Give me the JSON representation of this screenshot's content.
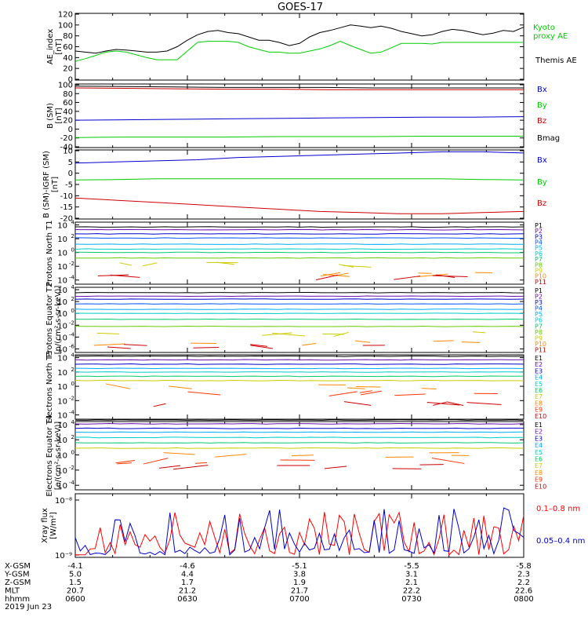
{
  "title": "GOES-17",
  "chart_data": [
    {
      "type": "line",
      "ylabel": "AE_index [nT]",
      "ylim": [
        0,
        120
      ],
      "yticks": [
        "0",
        "20",
        "40",
        "60",
        "80",
        "100",
        "120"
      ],
      "series": [
        {
          "name": "Kyoto proxy AE",
          "color": "#00cc00",
          "values": [
            33,
            38,
            44,
            50,
            52,
            50,
            45,
            40,
            36,
            36,
            36,
            52,
            68,
            70,
            70,
            70,
            68,
            60,
            55,
            50,
            50,
            48,
            48,
            52,
            56,
            62,
            70,
            62,
            55,
            48,
            50,
            58,
            66,
            66,
            66,
            65,
            68,
            68,
            68,
            68,
            68,
            68,
            68,
            68,
            68
          ]
        },
        {
          "name": "Themis AE",
          "color": "#000000",
          "values": [
            52,
            50,
            48,
            52,
            55,
            54,
            52,
            50,
            50,
            52,
            60,
            72,
            82,
            88,
            90,
            86,
            84,
            78,
            72,
            72,
            68,
            62,
            66,
            78,
            86,
            90,
            95,
            100,
            98,
            95,
            98,
            94,
            88,
            84,
            80,
            82,
            88,
            92,
            90,
            86,
            82,
            85,
            90,
            88,
            96
          ]
        }
      ]
    },
    {
      "type": "line",
      "ylabel": "B (SM) [nT]",
      "ylim": [
        -40,
        100
      ],
      "yticks": [
        "-40",
        "-20",
        "0",
        "20",
        "40",
        "60",
        "80",
        "100"
      ],
      "series": [
        {
          "name": "Bx",
          "color": "#0000cc",
          "values": [
            20,
            21,
            22,
            23,
            24,
            25,
            26,
            27,
            27,
            28
          ]
        },
        {
          "name": "By",
          "color": "#00cc00",
          "values": [
            -19,
            -18,
            -18,
            -18,
            -17,
            -17,
            -17,
            -16,
            -16,
            -16
          ]
        },
        {
          "name": "Bz",
          "color": "#cc0000",
          "values": [
            93,
            92,
            91,
            90,
            90,
            89,
            89,
            89,
            89,
            89
          ]
        },
        {
          "name": "Bmag",
          "color": "#000000",
          "values": [
            97,
            96,
            95,
            94,
            94,
            94,
            93,
            93,
            93,
            93
          ]
        }
      ]
    },
    {
      "type": "line",
      "ylabel": "B (SM)-IGRF (SM) [nT]",
      "ylim": [
        -20,
        10
      ],
      "yticks": [
        "-20",
        "-15",
        "-10",
        "-5",
        "0",
        "5",
        "10"
      ],
      "series": [
        {
          "name": "Bx",
          "color": "#0000cc",
          "values": [
            4.5,
            5,
            5.5,
            6,
            7,
            7.5,
            8,
            8.5,
            9,
            9.5,
            9.5,
            9
          ]
        },
        {
          "name": "By",
          "color": "#00cc00",
          "values": [
            -3,
            -2.8,
            -2.5,
            -2.5,
            -2.5,
            -2.5,
            -2.5,
            -2.5,
            -2.5,
            -2.5,
            -2.8,
            -3
          ]
        },
        {
          "name": "Bz",
          "color": "#cc0000",
          "values": [
            -11,
            -12,
            -13,
            -14,
            -15,
            -16,
            -17,
            -17.5,
            -18,
            -18,
            -17.5,
            -17
          ]
        }
      ]
    },
    {
      "type": "line",
      "ylabel": "Protons North T1",
      "yscale": "log",
      "yexp": [
        4,
        2,
        0,
        -2,
        -4
      ],
      "legend": [
        "P1",
        "P2",
        "P3",
        "P4",
        "P5",
        "P6",
        "P7",
        "P8",
        "P9",
        "P10",
        "P11"
      ],
      "legend_colors": [
        "#000000",
        "#6a0dad",
        "#0000cc",
        "#0055ff",
        "#00aaff",
        "#00cccc",
        "#00cc66",
        "#66cc00",
        "#cccc00",
        "#ff8800",
        "#cc0000"
      ],
      "levels": [
        3.7,
        3.3,
        2.7,
        2.1,
        1.2,
        0.5,
        0.0,
        -0.8,
        -1.8,
        -3.2,
        -3.6
      ]
    },
    {
      "type": "line",
      "ylabel": "Protons Equator T2 [p/(cm²-s-sr-keV)]",
      "yscale": "log",
      "yexp": [
        4,
        2,
        0,
        -2,
        -4,
        -6
      ],
      "legend": [
        "P1",
        "P2",
        "P3",
        "P4",
        "P5",
        "P6",
        "P7",
        "P8",
        "P9",
        "P10",
        "P11"
      ],
      "legend_colors": [
        "#000000",
        "#6a0dad",
        "#0000cc",
        "#0055ff",
        "#00aaff",
        "#00cccc",
        "#00cc66",
        "#66cc00",
        "#cccc00",
        "#ff8800",
        "#cc0000"
      ],
      "levels": [
        3.5,
        2.9,
        2.4,
        1.6,
        0.7,
        0.0,
        -1.0,
        -2.2,
        -3.5,
        -5.0,
        -5.6
      ]
    },
    {
      "type": "line",
      "ylabel": "Electrons North T3",
      "yscale": "log",
      "yexp": [
        4,
        2,
        0,
        -2,
        -4
      ],
      "legend": [
        "E1",
        "E2",
        "E3",
        "E4",
        "E5",
        "E6",
        "E7",
        "E8",
        "E9",
        "E10"
      ],
      "legend_colors": [
        "#000000",
        "#6a0dad",
        "#0000cc",
        "#00aaff",
        "#00cccc",
        "#00cc66",
        "#cccc00",
        "#ff8800",
        "#ff3300",
        "#cc0000"
      ],
      "levels": [
        4.2,
        3.7,
        3.1,
        2.5,
        2.0,
        1.4,
        0.8,
        0.0,
        -1.0,
        -2.5
      ]
    },
    {
      "type": "line",
      "ylabel": "Electrons Equator T4 [e/(cm²-s-sr-keV)]",
      "yscale": "log",
      "yexp": [
        4,
        2,
        0,
        -2,
        -4
      ],
      "legend": [
        "E1",
        "E2",
        "E3",
        "E4",
        "E5",
        "E6",
        "E7",
        "E8",
        "E9",
        "E10"
      ],
      "legend_colors": [
        "#000000",
        "#6a0dad",
        "#0000cc",
        "#00aaff",
        "#00cccc",
        "#00cc66",
        "#cccc00",
        "#ff8800",
        "#ff3300",
        "#cc0000"
      ],
      "levels": [
        4.6,
        4.1,
        3.5,
        3.0,
        2.3,
        1.6,
        0.9,
        0.0,
        -0.8,
        -1.6
      ]
    },
    {
      "type": "line",
      "ylabel": "Xray flux [W/m²]",
      "yscale": "log",
      "ytick_labels": [
        "10⁻⁸",
        "10⁻⁹"
      ],
      "series": [
        {
          "name": "0.1–0.8 nm",
          "color": "#ff0000"
        },
        {
          "name": "0.05–0.4 nm",
          "color": "#0000cc"
        }
      ]
    }
  ],
  "x_axis": {
    "rows": [
      {
        "label": "X-GSM",
        "values": [
          "-4.1",
          "-4.6",
          "-5.1",
          "-5.5",
          "-5.8"
        ]
      },
      {
        "label": "Y-GSM",
        "values": [
          "5.0",
          "4.4",
          "3.8",
          "3.1",
          "2.3"
        ]
      },
      {
        "label": "Z-GSM",
        "values": [
          "1.5",
          "1.7",
          "1.9",
          "2.1",
          "2.2"
        ]
      },
      {
        "label": "MLT",
        "values": [
          "20.7",
          "21.2",
          "21.7",
          "22.2",
          "22.6"
        ]
      },
      {
        "label": "hhmm",
        "values": [
          "0600",
          "0630",
          "0700",
          "0730",
          "0800"
        ]
      }
    ],
    "date": "2019 Jun 23"
  }
}
